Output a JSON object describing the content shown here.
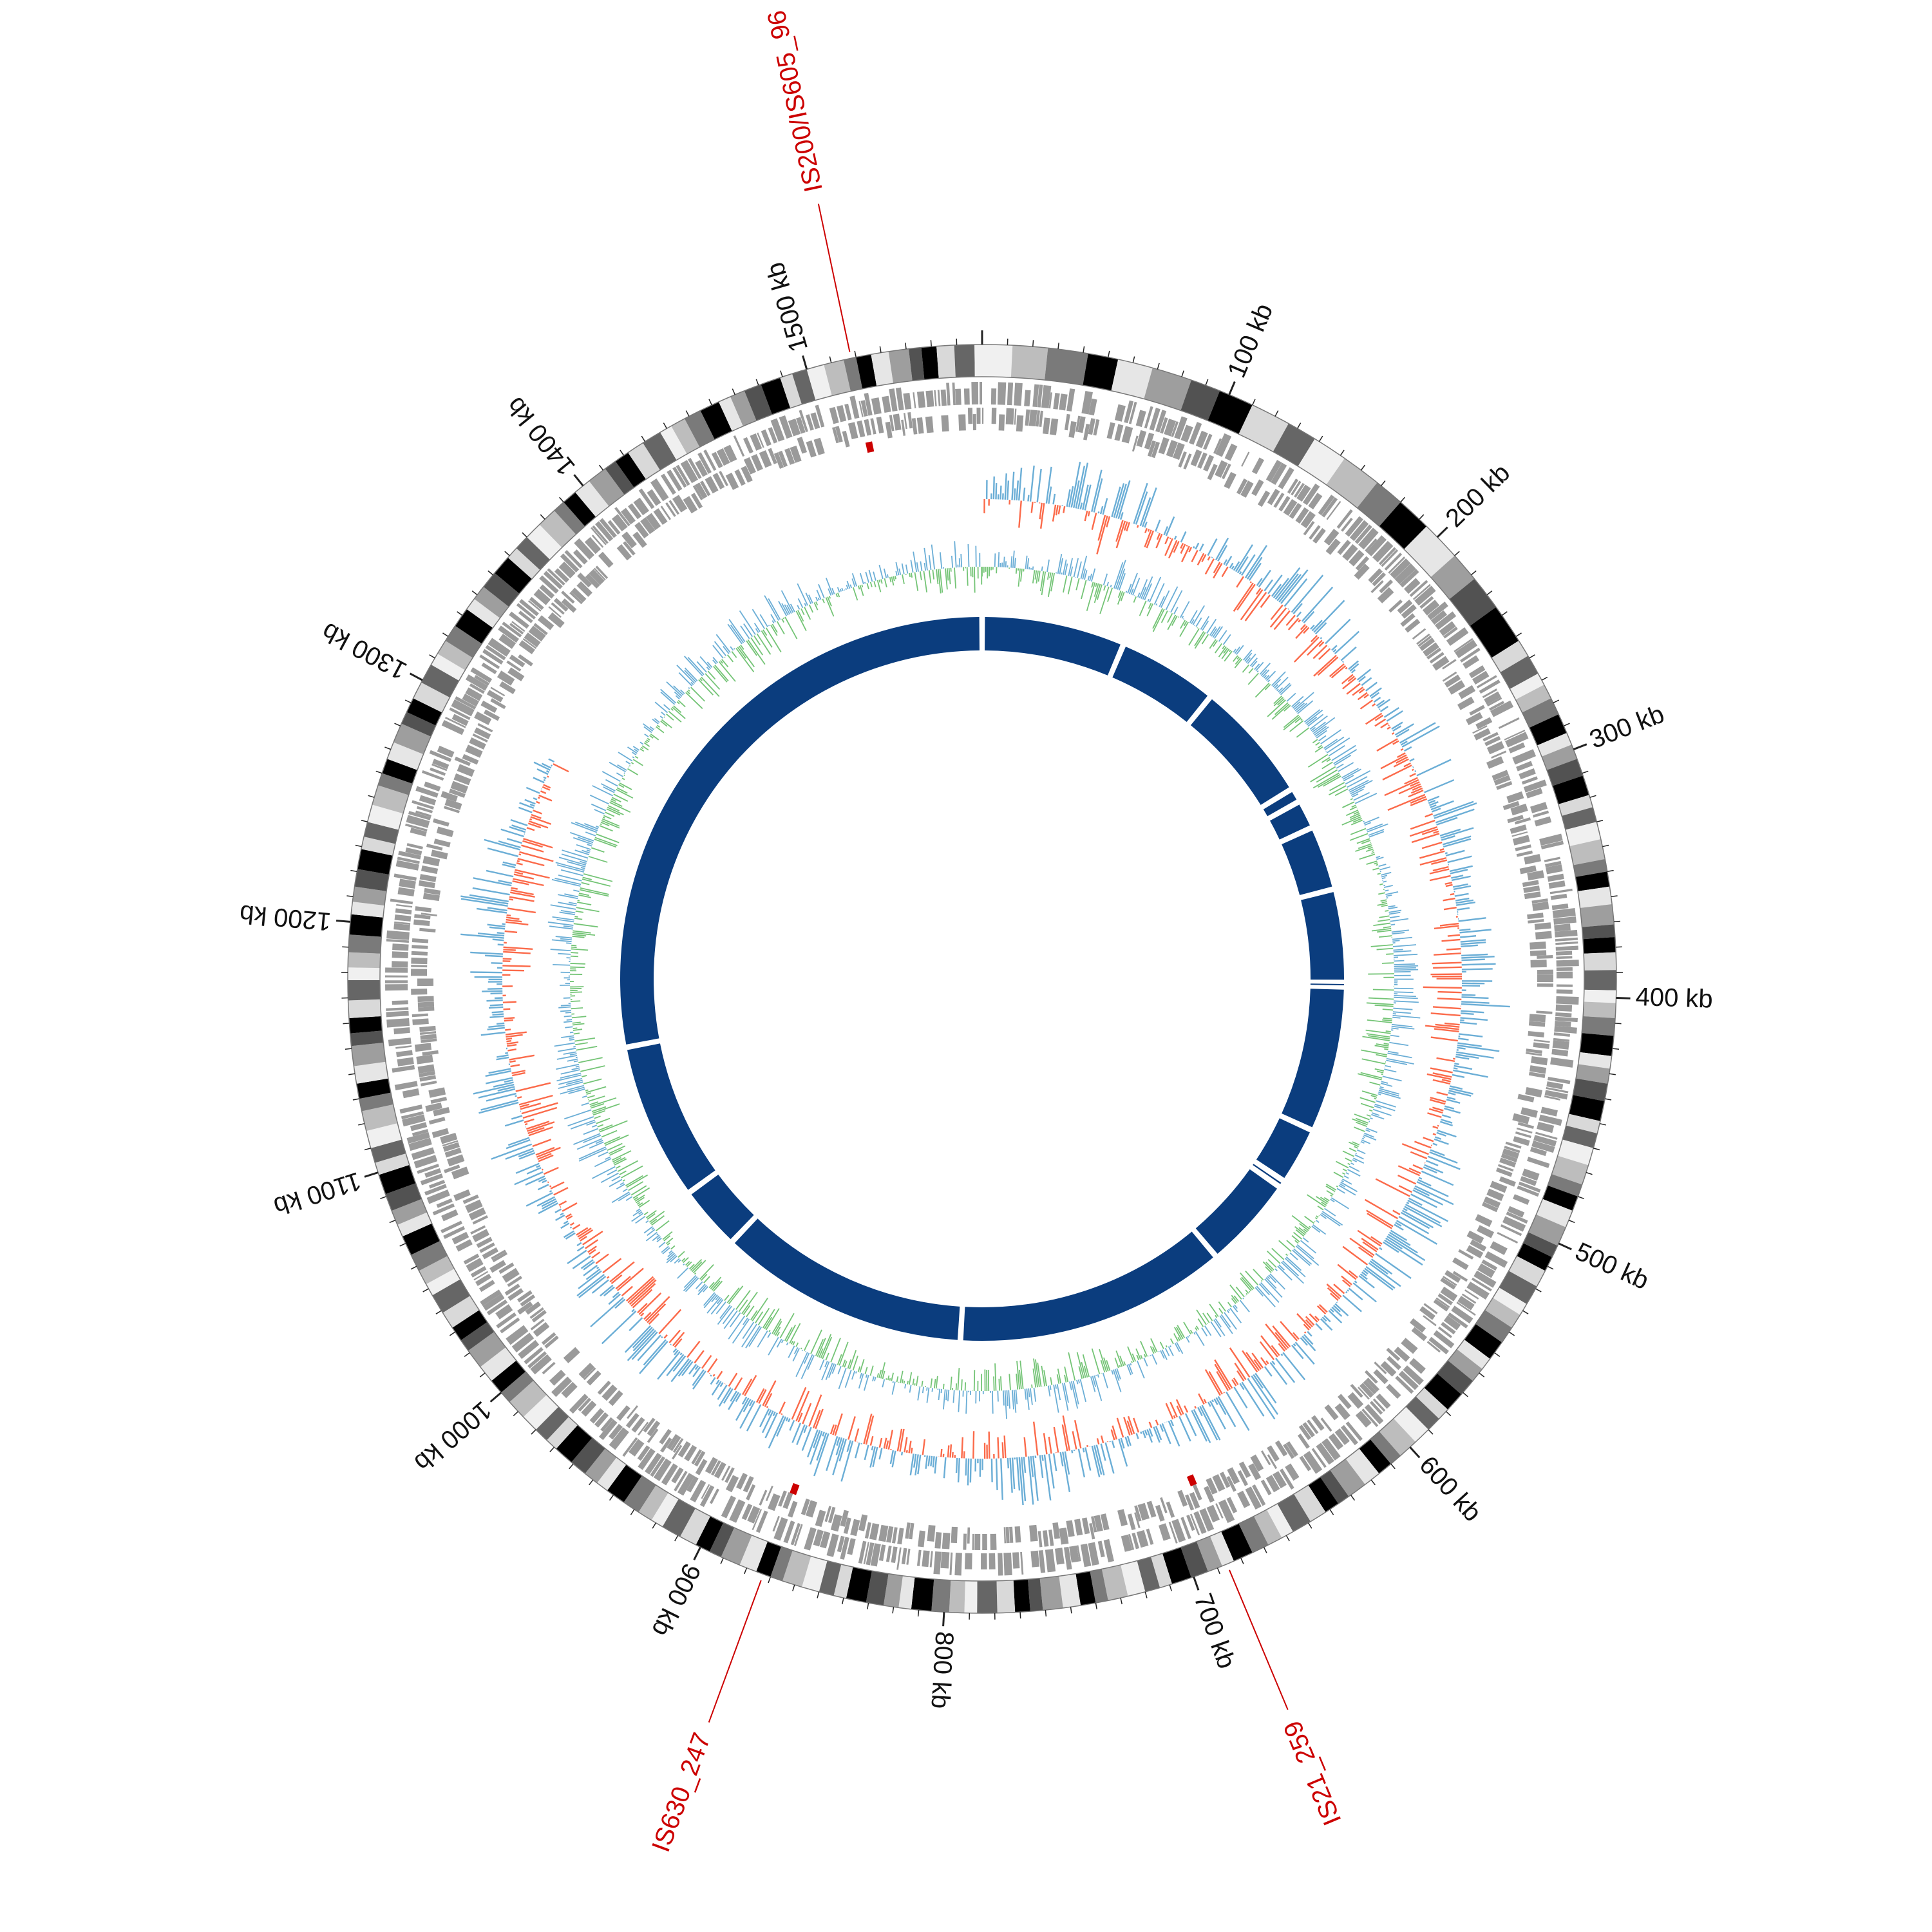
{
  "genome": {
    "length_kb": 1570,
    "tick_labels": [
      "100 kb",
      "200 kb",
      "300 kb",
      "400 kb",
      "500 kb",
      "600 kb",
      "700 kb",
      "800 kb",
      "900 kb",
      "1000 kb",
      "1100 kb",
      "1200 kb",
      "1300 kb",
      "1400 kb",
      "1500 kb"
    ]
  },
  "is_elements": [
    {
      "label": "IS200/IS605_96",
      "position_kb": 1518
    },
    {
      "label": "IS21_259",
      "position_kb": 686
    },
    {
      "label": "IS630_247",
      "position_kb": 873
    }
  ],
  "contigs_kb": [
    0,
    100,
    170,
    255,
    265,
    285,
    330,
    395,
    398,
    500,
    540,
    545,
    610,
    800,
    975,
    1020,
    1130,
    1570
  ],
  "colors": {
    "is_marker": "#cc0000",
    "gene_blocks": "#9a9a9a",
    "skew_positive": "#6baed6",
    "skew_negative": "#fb6a4a",
    "gc_content": "#74c476",
    "contig_ring": "#0b3d7e"
  }
}
